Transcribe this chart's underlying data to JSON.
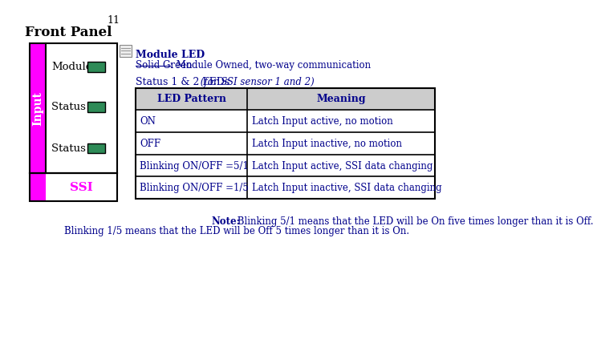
{
  "page_num": "11",
  "front_panel_title": "Front Panel",
  "panel_labels": [
    "Module",
    "Status 1",
    "Status 2"
  ],
  "panel_side_label": "Input",
  "panel_bottom_label": "SSI",
  "panel_magenta": "#FF00FF",
  "panel_green": "#2E8B57",
  "module_led_title": "Module LED",
  "module_led_text_underlined": "Solid Green",
  "module_led_text_rest": ": Module Owned, two-way communication",
  "status_leds_title": "Status 1 & 2 LEDs",
  "status_leds_italic": " (for SSI sensor 1 and 2)",
  "table_header": [
    "LED Pattern",
    "Meaning"
  ],
  "table_rows": [
    [
      "ON",
      "Latch Input active, no motion"
    ],
    [
      "OFF",
      "Latch Input inactive, no motion"
    ],
    [
      "Blinking ON/OFF =5/1",
      "Latch Input active, SSI data changing"
    ],
    [
      "Blinking ON/OFF =1/5",
      "Latch Input inactive, SSI data changing"
    ]
  ],
  "note_bold": "Note:",
  "note_line1": " Blinking 5/1 means that the LED will be On five times longer than it is Off.",
  "note_line2": "Blinking 1/5 means that the LED will be Off 5 times longer than it is On.",
  "text_color": "#00008B",
  "header_bg": "#CCCCCC",
  "table_border": "#000000",
  "bg_color": "#FFFFFF"
}
